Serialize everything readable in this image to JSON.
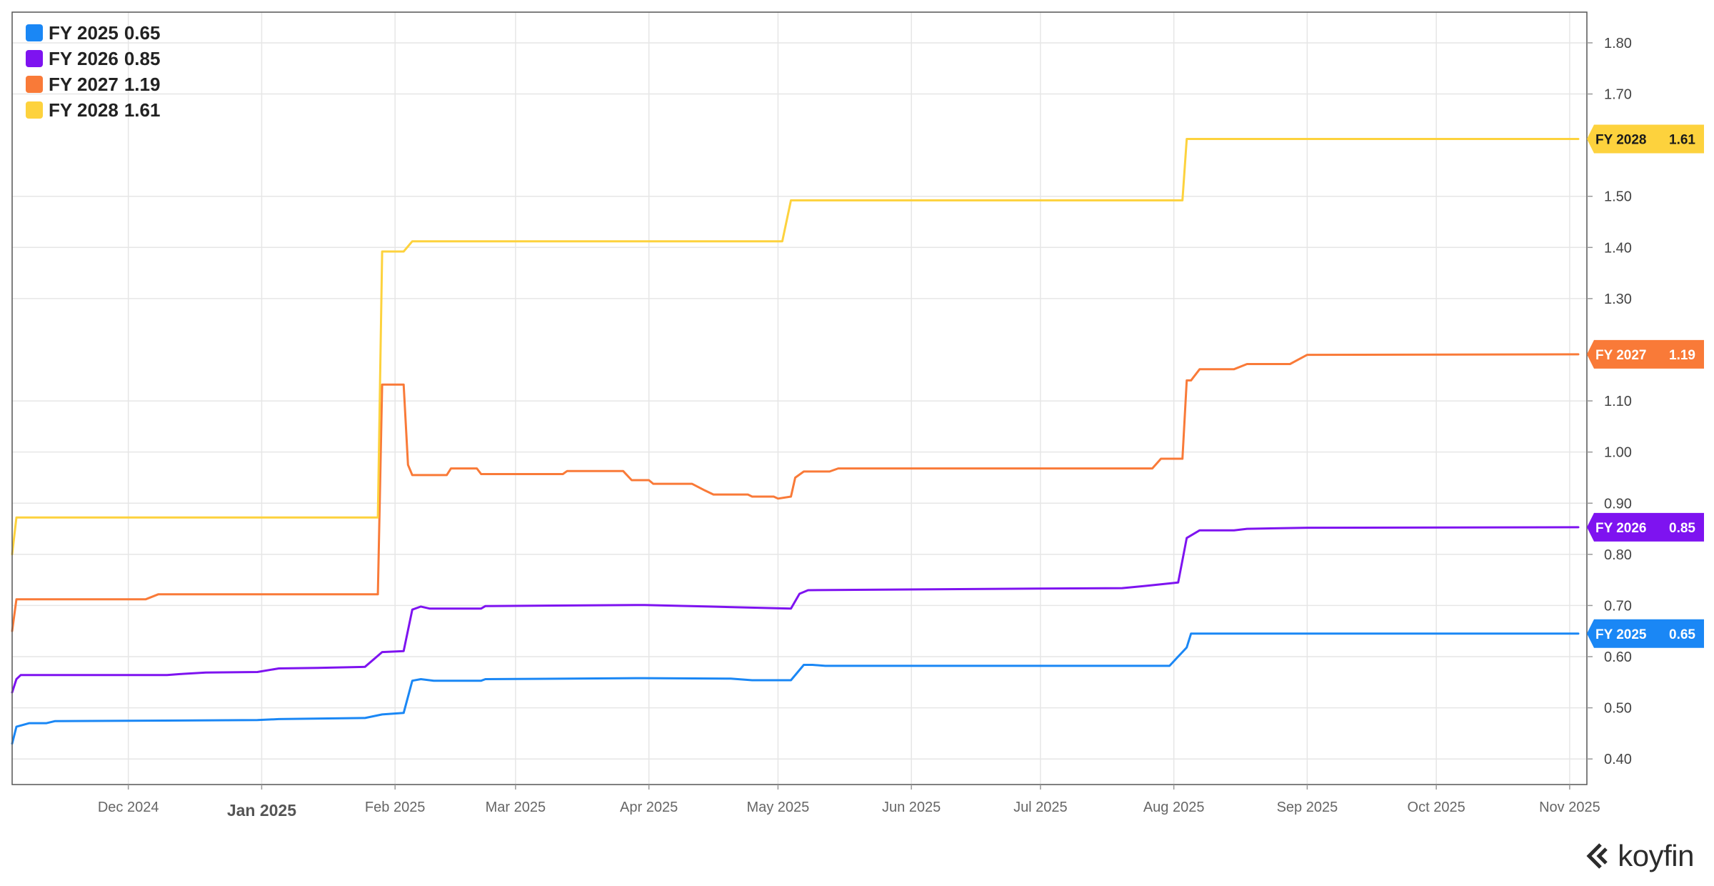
{
  "chart_data": {
    "type": "line",
    "x_type": "date",
    "x_range": [
      "2024-11-04",
      "2025-11-05"
    ],
    "ylim": [
      0.35,
      1.86
    ],
    "y_ticks": [
      0.4,
      0.5,
      0.6,
      0.7,
      0.8,
      0.9,
      1.0,
      1.1,
      1.3,
      1.4,
      1.5,
      1.7,
      1.8
    ],
    "x_ticks": [
      {
        "date": "2024-12-01",
        "label": "Dec 2024",
        "major": false
      },
      {
        "date": "2025-01-01",
        "label": "Jan 2025",
        "major": true
      },
      {
        "date": "2025-02-01",
        "label": "Feb 2025",
        "major": false
      },
      {
        "date": "2025-03-01",
        "label": "Mar 2025",
        "major": false
      },
      {
        "date": "2025-04-01",
        "label": "Apr 2025",
        "major": false
      },
      {
        "date": "2025-05-01",
        "label": "May 2025",
        "major": false
      },
      {
        "date": "2025-06-01",
        "label": "Jun 2025",
        "major": false
      },
      {
        "date": "2025-07-01",
        "label": "Jul 2025",
        "major": false
      },
      {
        "date": "2025-08-01",
        "label": "Aug 2025",
        "major": false
      },
      {
        "date": "2025-09-01",
        "label": "Sep 2025",
        "major": false
      },
      {
        "date": "2025-10-01",
        "label": "Oct 2025",
        "major": false
      },
      {
        "date": "2025-11-01",
        "label": "Nov 2025",
        "major": false
      }
    ],
    "grid": true,
    "legend_position": "top-left",
    "series": [
      {
        "name": "FY 2025",
        "last_label": "0.65",
        "color": "#1a87f5",
        "points": [
          [
            "2024-11-04",
            0.43
          ],
          [
            "2024-11-05",
            0.463
          ],
          [
            "2024-11-08",
            0.47
          ],
          [
            "2024-11-12",
            0.47
          ],
          [
            "2024-11-14",
            0.474
          ],
          [
            "2024-12-31",
            0.476
          ],
          [
            "2025-01-05",
            0.478
          ],
          [
            "2025-01-25",
            0.48
          ],
          [
            "2025-01-29",
            0.487
          ],
          [
            "2025-02-03",
            0.49
          ],
          [
            "2025-02-05",
            0.553
          ],
          [
            "2025-02-07",
            0.556
          ],
          [
            "2025-02-10",
            0.553
          ],
          [
            "2025-02-21",
            0.553
          ],
          [
            "2025-02-22",
            0.556
          ],
          [
            "2025-03-31",
            0.558
          ],
          [
            "2025-04-20",
            0.557
          ],
          [
            "2025-04-25",
            0.554
          ],
          [
            "2025-05-04",
            0.554
          ],
          [
            "2025-05-07",
            0.584
          ],
          [
            "2025-05-09",
            0.584
          ],
          [
            "2025-05-12",
            0.582
          ],
          [
            "2025-07-31",
            0.582
          ],
          [
            "2025-08-04",
            0.618
          ],
          [
            "2025-08-05",
            0.645
          ],
          [
            "2025-11-03",
            0.645
          ]
        ]
      },
      {
        "name": "FY 2026",
        "last_label": "0.85",
        "color": "#7e13f0",
        "points": [
          [
            "2024-11-04",
            0.53
          ],
          [
            "2024-11-05",
            0.556
          ],
          [
            "2024-11-06",
            0.564
          ],
          [
            "2024-12-10",
            0.564
          ],
          [
            "2024-12-13",
            0.566
          ],
          [
            "2024-12-19",
            0.569
          ],
          [
            "2024-12-31",
            0.57
          ],
          [
            "2025-01-05",
            0.577
          ],
          [
            "2025-01-14",
            0.578
          ],
          [
            "2025-01-25",
            0.58
          ],
          [
            "2025-01-29",
            0.609
          ],
          [
            "2025-02-03",
            0.611
          ],
          [
            "2025-02-05",
            0.692
          ],
          [
            "2025-02-07",
            0.698
          ],
          [
            "2025-02-09",
            0.694
          ],
          [
            "2025-02-21",
            0.694
          ],
          [
            "2025-02-22",
            0.699
          ],
          [
            "2025-03-31",
            0.701
          ],
          [
            "2025-04-15",
            0.698
          ],
          [
            "2025-05-04",
            0.694
          ],
          [
            "2025-05-06",
            0.723
          ],
          [
            "2025-05-08",
            0.73
          ],
          [
            "2025-06-30",
            0.733
          ],
          [
            "2025-07-20",
            0.734
          ],
          [
            "2025-07-25",
            0.738
          ],
          [
            "2025-08-02",
            0.745
          ],
          [
            "2025-08-04",
            0.832
          ],
          [
            "2025-08-07",
            0.847
          ],
          [
            "2025-08-15",
            0.847
          ],
          [
            "2025-08-18",
            0.85
          ],
          [
            "2025-09-01",
            0.852
          ],
          [
            "2025-11-03",
            0.853
          ]
        ]
      },
      {
        "name": "FY 2027",
        "last_label": "1.19",
        "color": "#f97a38",
        "points": [
          [
            "2024-11-04",
            0.65
          ],
          [
            "2024-11-05",
            0.712
          ],
          [
            "2024-12-05",
            0.712
          ],
          [
            "2024-12-08",
            0.722
          ],
          [
            "2025-01-28",
            0.722
          ],
          [
            "2025-01-29",
            1.132
          ],
          [
            "2025-02-03",
            1.132
          ],
          [
            "2025-02-04",
            0.975
          ],
          [
            "2025-02-05",
            0.955
          ],
          [
            "2025-02-13",
            0.955
          ],
          [
            "2025-02-14",
            0.968
          ],
          [
            "2025-02-20",
            0.968
          ],
          [
            "2025-02-21",
            0.957
          ],
          [
            "2025-03-12",
            0.957
          ],
          [
            "2025-03-13",
            0.963
          ],
          [
            "2025-03-26",
            0.963
          ],
          [
            "2025-03-28",
            0.945
          ],
          [
            "2025-04-01",
            0.945
          ],
          [
            "2025-04-02",
            0.938
          ],
          [
            "2025-04-11",
            0.938
          ],
          [
            "2025-04-14",
            0.925
          ],
          [
            "2025-04-16",
            0.917
          ],
          [
            "2025-04-24",
            0.917
          ],
          [
            "2025-04-25",
            0.913
          ],
          [
            "2025-04-30",
            0.913
          ],
          [
            "2025-05-01",
            0.909
          ],
          [
            "2025-05-04",
            0.913
          ],
          [
            "2025-05-05",
            0.95
          ],
          [
            "2025-05-07",
            0.962
          ],
          [
            "2025-05-13",
            0.962
          ],
          [
            "2025-05-15",
            0.968
          ],
          [
            "2025-07-27",
            0.968
          ],
          [
            "2025-07-29",
            0.987
          ],
          [
            "2025-08-03",
            0.987
          ],
          [
            "2025-08-04",
            1.14
          ],
          [
            "2025-08-05",
            1.14
          ],
          [
            "2025-08-07",
            1.162
          ],
          [
            "2025-08-15",
            1.162
          ],
          [
            "2025-08-18",
            1.172
          ],
          [
            "2025-08-28",
            1.172
          ],
          [
            "2025-09-01",
            1.19
          ],
          [
            "2025-11-03",
            1.191
          ]
        ]
      },
      {
        "name": "FY 2028",
        "last_label": "1.61",
        "color": "#fdd23d",
        "points": [
          [
            "2024-11-04",
            0.8
          ],
          [
            "2024-11-05",
            0.872
          ],
          [
            "2025-01-28",
            0.872
          ],
          [
            "2025-01-29",
            1.392
          ],
          [
            "2025-02-03",
            1.392
          ],
          [
            "2025-02-05",
            1.412
          ],
          [
            "2025-05-02",
            1.412
          ],
          [
            "2025-05-04",
            1.492
          ],
          [
            "2025-08-03",
            1.492
          ],
          [
            "2025-08-04",
            1.612
          ],
          [
            "2025-11-03",
            1.612
          ]
        ]
      }
    ]
  },
  "brand": {
    "name": "koyfin"
  }
}
